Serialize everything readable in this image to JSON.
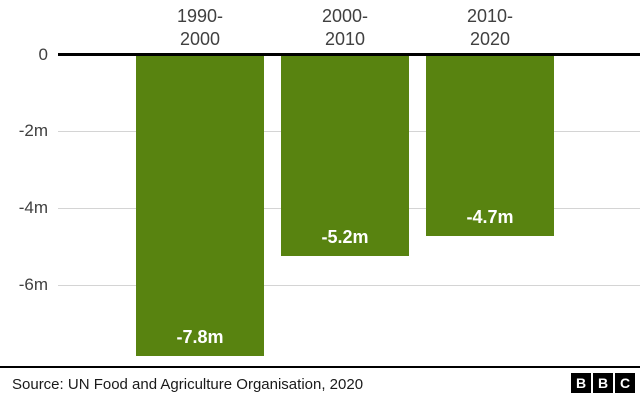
{
  "chart_data": {
    "type": "bar",
    "categories": [
      "1990-2000",
      "2000-2010",
      "2010-2020"
    ],
    "category_lines": [
      [
        "1990-",
        "2000"
      ],
      [
        "2000-",
        "2010"
      ],
      [
        "2010-",
        "2020"
      ]
    ],
    "values": [
      -7.8,
      -5.2,
      -4.7
    ],
    "value_labels": [
      "-7.8m",
      "-5.2m",
      "-4.7m"
    ],
    "y_ticks": [
      "0",
      "-2m",
      "-4m",
      "-6m"
    ],
    "y_tick_values": [
      0,
      -2,
      -4,
      -6
    ],
    "ylim": [
      -8.1,
      0
    ],
    "bar_color": "#588310",
    "title": "",
    "xlabel": "",
    "ylabel": "",
    "grid": true,
    "legend": "none"
  },
  "footer": {
    "source": "Source: UN Food and Agriculture Organisation, 2020",
    "logo_letters": [
      "B",
      "B",
      "C"
    ]
  }
}
